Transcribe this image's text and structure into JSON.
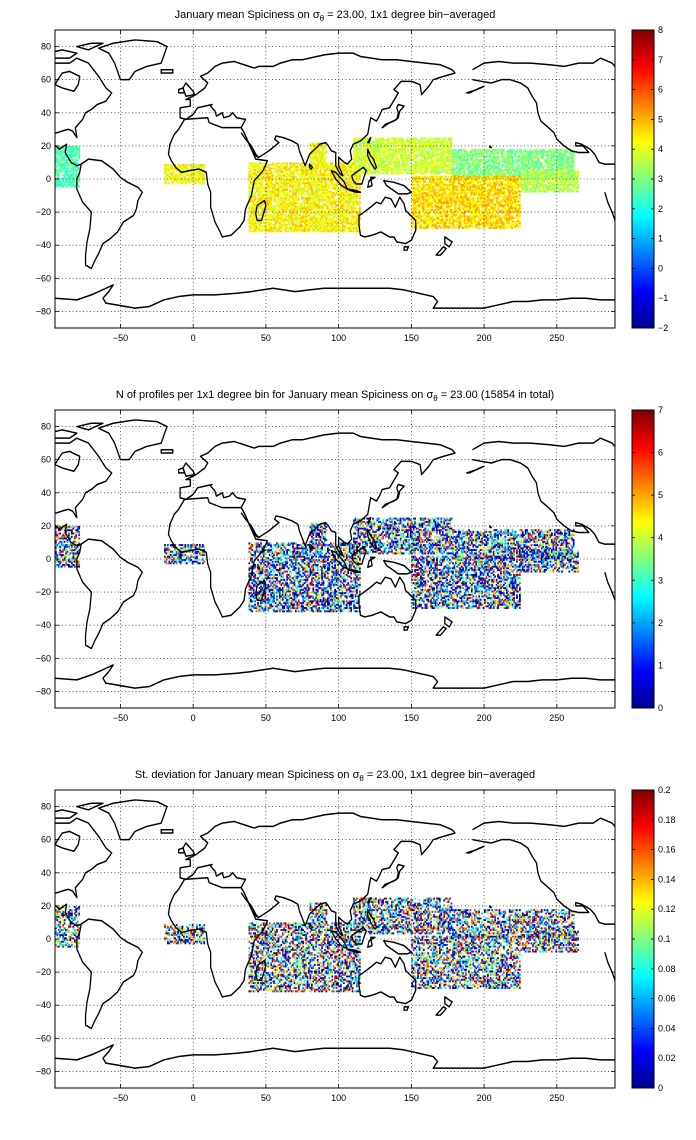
{
  "chart_data": [
    {
      "type": "heatmap",
      "title_prefix": "January mean Spiciness on ",
      "title_sigma": "σ",
      "title_sub": "θ",
      "title_suffix": " = 23.00, 1x1 degree bin−averaged",
      "xticks": [
        "−50",
        "0",
        "50",
        "100",
        "150",
        "200",
        "250"
      ],
      "xtick_values": [
        -50,
        0,
        50,
        100,
        150,
        200,
        250
      ],
      "yticks": [
        "80",
        "60",
        "40",
        "20",
        "0",
        "−20",
        "−40",
        "−60",
        "−80"
      ],
      "ytick_values": [
        80,
        60,
        40,
        20,
        0,
        -20,
        -40,
        -60,
        -80
      ],
      "xlim": [
        -95,
        290
      ],
      "ylim": [
        -90,
        90
      ],
      "grid": true,
      "colorbar": {
        "colormap": "jet",
        "ticks": [
          "8",
          "7",
          "6",
          "5",
          "4",
          "3",
          "2",
          "1",
          "0",
          "−1",
          "−2"
        ],
        "tick_values": [
          8,
          7,
          6,
          5,
          4,
          3,
          2,
          1,
          0,
          -1,
          -2
        ],
        "clim": [
          -2,
          8
        ]
      }
    },
    {
      "type": "heatmap",
      "title_prefix": "N of profiles per 1x1 degree bin for January mean Spiciness on ",
      "title_sigma": "σ",
      "title_sub": "θ",
      "title_suffix": " = 23.00 (15854 in total)",
      "xticks": [
        "−50",
        "0",
        "50",
        "100",
        "150",
        "200",
        "250"
      ],
      "xtick_values": [
        -50,
        0,
        50,
        100,
        150,
        200,
        250
      ],
      "yticks": [
        "80",
        "60",
        "40",
        "20",
        "0",
        "−20",
        "−40",
        "−60",
        "−80"
      ],
      "ytick_values": [
        80,
        60,
        40,
        20,
        0,
        -20,
        -40,
        -60,
        -80
      ],
      "xlim": [
        -95,
        290
      ],
      "ylim": [
        -90,
        90
      ],
      "grid": true,
      "colorbar": {
        "colormap": "jet",
        "ticks": [
          "7",
          "6",
          "5",
          "4",
          "3",
          "2",
          "1",
          "0"
        ],
        "tick_values": [
          7,
          6,
          5,
          4,
          3,
          2,
          1,
          0
        ],
        "clim": [
          0,
          7
        ]
      }
    },
    {
      "type": "heatmap",
      "title_prefix": "St. deviation for January mean Spiciness on ",
      "title_sigma": "σ",
      "title_sub": "θ",
      "title_suffix": " = 23.00, 1x1 degree bin−averaged",
      "xticks": [
        "−50",
        "0",
        "50",
        "100",
        "150",
        "200",
        "250"
      ],
      "xtick_values": [
        -50,
        0,
        50,
        100,
        150,
        200,
        250
      ],
      "yticks": [
        "80",
        "60",
        "40",
        "20",
        "0",
        "−20",
        "−40",
        "−60",
        "−80"
      ],
      "ytick_values": [
        80,
        60,
        40,
        20,
        0,
        -20,
        -40,
        -60,
        -80
      ],
      "xlim": [
        -95,
        290
      ],
      "ylim": [
        -90,
        90
      ],
      "grid": true,
      "colorbar": {
        "colormap": "jet",
        "ticks": [
          "0.2",
          "0.18",
          "0.16",
          "0.14",
          "0.12",
          "0.1",
          "0.08",
          "0.06",
          "0.04",
          "0.02",
          "0"
        ],
        "tick_values": [
          0.2,
          0.18,
          0.16,
          0.14,
          0.12,
          0.1,
          0.08,
          0.06,
          0.04,
          0.02,
          0
        ],
        "clim": [
          0,
          0.2
        ]
      }
    }
  ]
}
